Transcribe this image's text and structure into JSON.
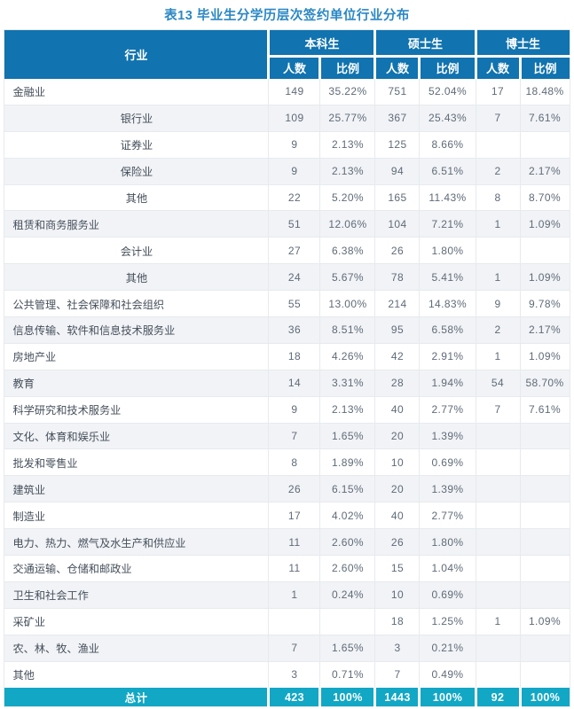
{
  "title": "表13 毕业生分学历层次签约单位行业分布",
  "colors": {
    "header_bg": "#1173af",
    "total_bg": "#12a7c5",
    "row_alt_bg": "#f1f3f6",
    "grid_line": "#e7eaee",
    "title_color": "#2b87c5",
    "text_color": "#5f6b78",
    "industry_color": "#454f5b"
  },
  "table": {
    "header": {
      "industry": "行业",
      "groups": [
        {
          "label": "本科生"
        },
        {
          "label": "硕士生"
        },
        {
          "label": "博士生"
        }
      ],
      "sub_headers": [
        "人数",
        "比例",
        "人数",
        "比例",
        "人数",
        "比例"
      ]
    },
    "rows": [
      {
        "industry": "金融业",
        "sub": false,
        "values": [
          "149",
          "35.22%",
          "751",
          "52.04%",
          "17",
          "18.48%"
        ]
      },
      {
        "industry": "银行业",
        "sub": true,
        "values": [
          "109",
          "25.77%",
          "367",
          "25.43%",
          "7",
          "7.61%"
        ]
      },
      {
        "industry": "证券业",
        "sub": true,
        "values": [
          "9",
          "2.13%",
          "125",
          "8.66%",
          "",
          ""
        ]
      },
      {
        "industry": "保险业",
        "sub": true,
        "values": [
          "9",
          "2.13%",
          "94",
          "6.51%",
          "2",
          "2.17%"
        ]
      },
      {
        "industry": "其他",
        "sub": true,
        "values": [
          "22",
          "5.20%",
          "165",
          "11.43%",
          "8",
          "8.70%"
        ]
      },
      {
        "industry": "租赁和商务服务业",
        "sub": false,
        "values": [
          "51",
          "12.06%",
          "104",
          "7.21%",
          "1",
          "1.09%"
        ]
      },
      {
        "industry": "会计业",
        "sub": true,
        "values": [
          "27",
          "6.38%",
          "26",
          "1.80%",
          "",
          ""
        ]
      },
      {
        "industry": "其他",
        "sub": true,
        "values": [
          "24",
          "5.67%",
          "78",
          "5.41%",
          "1",
          "1.09%"
        ]
      },
      {
        "industry": "公共管理、社会保障和社会组织",
        "sub": false,
        "values": [
          "55",
          "13.00%",
          "214",
          "14.83%",
          "9",
          "9.78%"
        ]
      },
      {
        "industry": "信息传输、软件和信息技术服务业",
        "sub": false,
        "values": [
          "36",
          "8.51%",
          "95",
          "6.58%",
          "2",
          "2.17%"
        ]
      },
      {
        "industry": "房地产业",
        "sub": false,
        "values": [
          "18",
          "4.26%",
          "42",
          "2.91%",
          "1",
          "1.09%"
        ]
      },
      {
        "industry": "教育",
        "sub": false,
        "values": [
          "14",
          "3.31%",
          "28",
          "1.94%",
          "54",
          "58.70%"
        ]
      },
      {
        "industry": "科学研究和技术服务业",
        "sub": false,
        "values": [
          "9",
          "2.13%",
          "40",
          "2.77%",
          "7",
          "7.61%"
        ]
      },
      {
        "industry": "文化、体育和娱乐业",
        "sub": false,
        "values": [
          "7",
          "1.65%",
          "20",
          "1.39%",
          "",
          ""
        ]
      },
      {
        "industry": "批发和零售业",
        "sub": false,
        "values": [
          "8",
          "1.89%",
          "10",
          "0.69%",
          "",
          ""
        ]
      },
      {
        "industry": "建筑业",
        "sub": false,
        "values": [
          "26",
          "6.15%",
          "20",
          "1.39%",
          "",
          ""
        ]
      },
      {
        "industry": "制造业",
        "sub": false,
        "values": [
          "17",
          "4.02%",
          "40",
          "2.77%",
          "",
          ""
        ]
      },
      {
        "industry": "电力、热力、燃气及水生产和供应业",
        "sub": false,
        "values": [
          "11",
          "2.60%",
          "26",
          "1.80%",
          "",
          ""
        ]
      },
      {
        "industry": "交通运输、仓储和邮政业",
        "sub": false,
        "values": [
          "11",
          "2.60%",
          "15",
          "1.04%",
          "",
          ""
        ]
      },
      {
        "industry": "卫生和社会工作",
        "sub": false,
        "values": [
          "1",
          "0.24%",
          "10",
          "0.69%",
          "",
          ""
        ]
      },
      {
        "industry": "采矿业",
        "sub": false,
        "values": [
          "",
          "",
          "18",
          "1.25%",
          "1",
          "1.09%"
        ]
      },
      {
        "industry": "农、林、牧、渔业",
        "sub": false,
        "values": [
          "7",
          "1.65%",
          "3",
          "0.21%",
          "",
          ""
        ]
      },
      {
        "industry": "其他",
        "sub": false,
        "values": [
          "3",
          "0.71%",
          "7",
          "0.49%",
          "",
          ""
        ]
      }
    ],
    "total": {
      "label": "总计",
      "values": [
        "423",
        "100%",
        "1443",
        "100%",
        "92",
        "100%"
      ]
    }
  }
}
